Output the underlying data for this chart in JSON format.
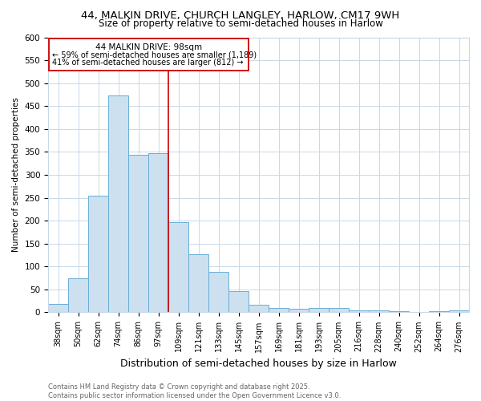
{
  "title_line1": "44, MALKIN DRIVE, CHURCH LANGLEY, HARLOW, CM17 9WH",
  "title_line2": "Size of property relative to semi-detached houses in Harlow",
  "xlabel": "Distribution of semi-detached houses by size in Harlow",
  "ylabel": "Number of semi-detached properties",
  "categories": [
    "38sqm",
    "50sqm",
    "62sqm",
    "74sqm",
    "86sqm",
    "97sqm",
    "109sqm",
    "121sqm",
    "133sqm",
    "145sqm",
    "157sqm",
    "169sqm",
    "181sqm",
    "193sqm",
    "205sqm",
    "216sqm",
    "228sqm",
    "240sqm",
    "252sqm",
    "264sqm",
    "276sqm"
  ],
  "values": [
    18,
    75,
    255,
    473,
    343,
    348,
    197,
    127,
    88,
    46,
    17,
    9,
    7,
    9,
    10,
    5,
    4,
    2,
    1,
    3,
    4
  ],
  "bar_color": "#cce0f0",
  "bar_edge_color": "#6aaed6",
  "vline_color": "#cc0000",
  "vline_label": "44 MALKIN DRIVE: 98sqm",
  "annotation_smaller": "← 59% of semi-detached houses are smaller (1,189)",
  "annotation_larger": "41% of semi-detached houses are larger (812) →",
  "ylim": [
    0,
    600
  ],
  "yticks": [
    0,
    50,
    100,
    150,
    200,
    250,
    300,
    350,
    400,
    450,
    500,
    550,
    600
  ],
  "footnote": "Contains HM Land Registry data © Crown copyright and database right 2025.\nContains public sector information licensed under the Open Government Licence v3.0.",
  "bg_color": "#ffffff",
  "grid_color": "#c8d8e8",
  "title_fontsize": 9.5,
  "subtitle_fontsize": 8.5,
  "axis_label_fontsize": 9,
  "tick_fontsize": 7,
  "annotation_fontsize": 7.5,
  "footnote_fontsize": 6
}
